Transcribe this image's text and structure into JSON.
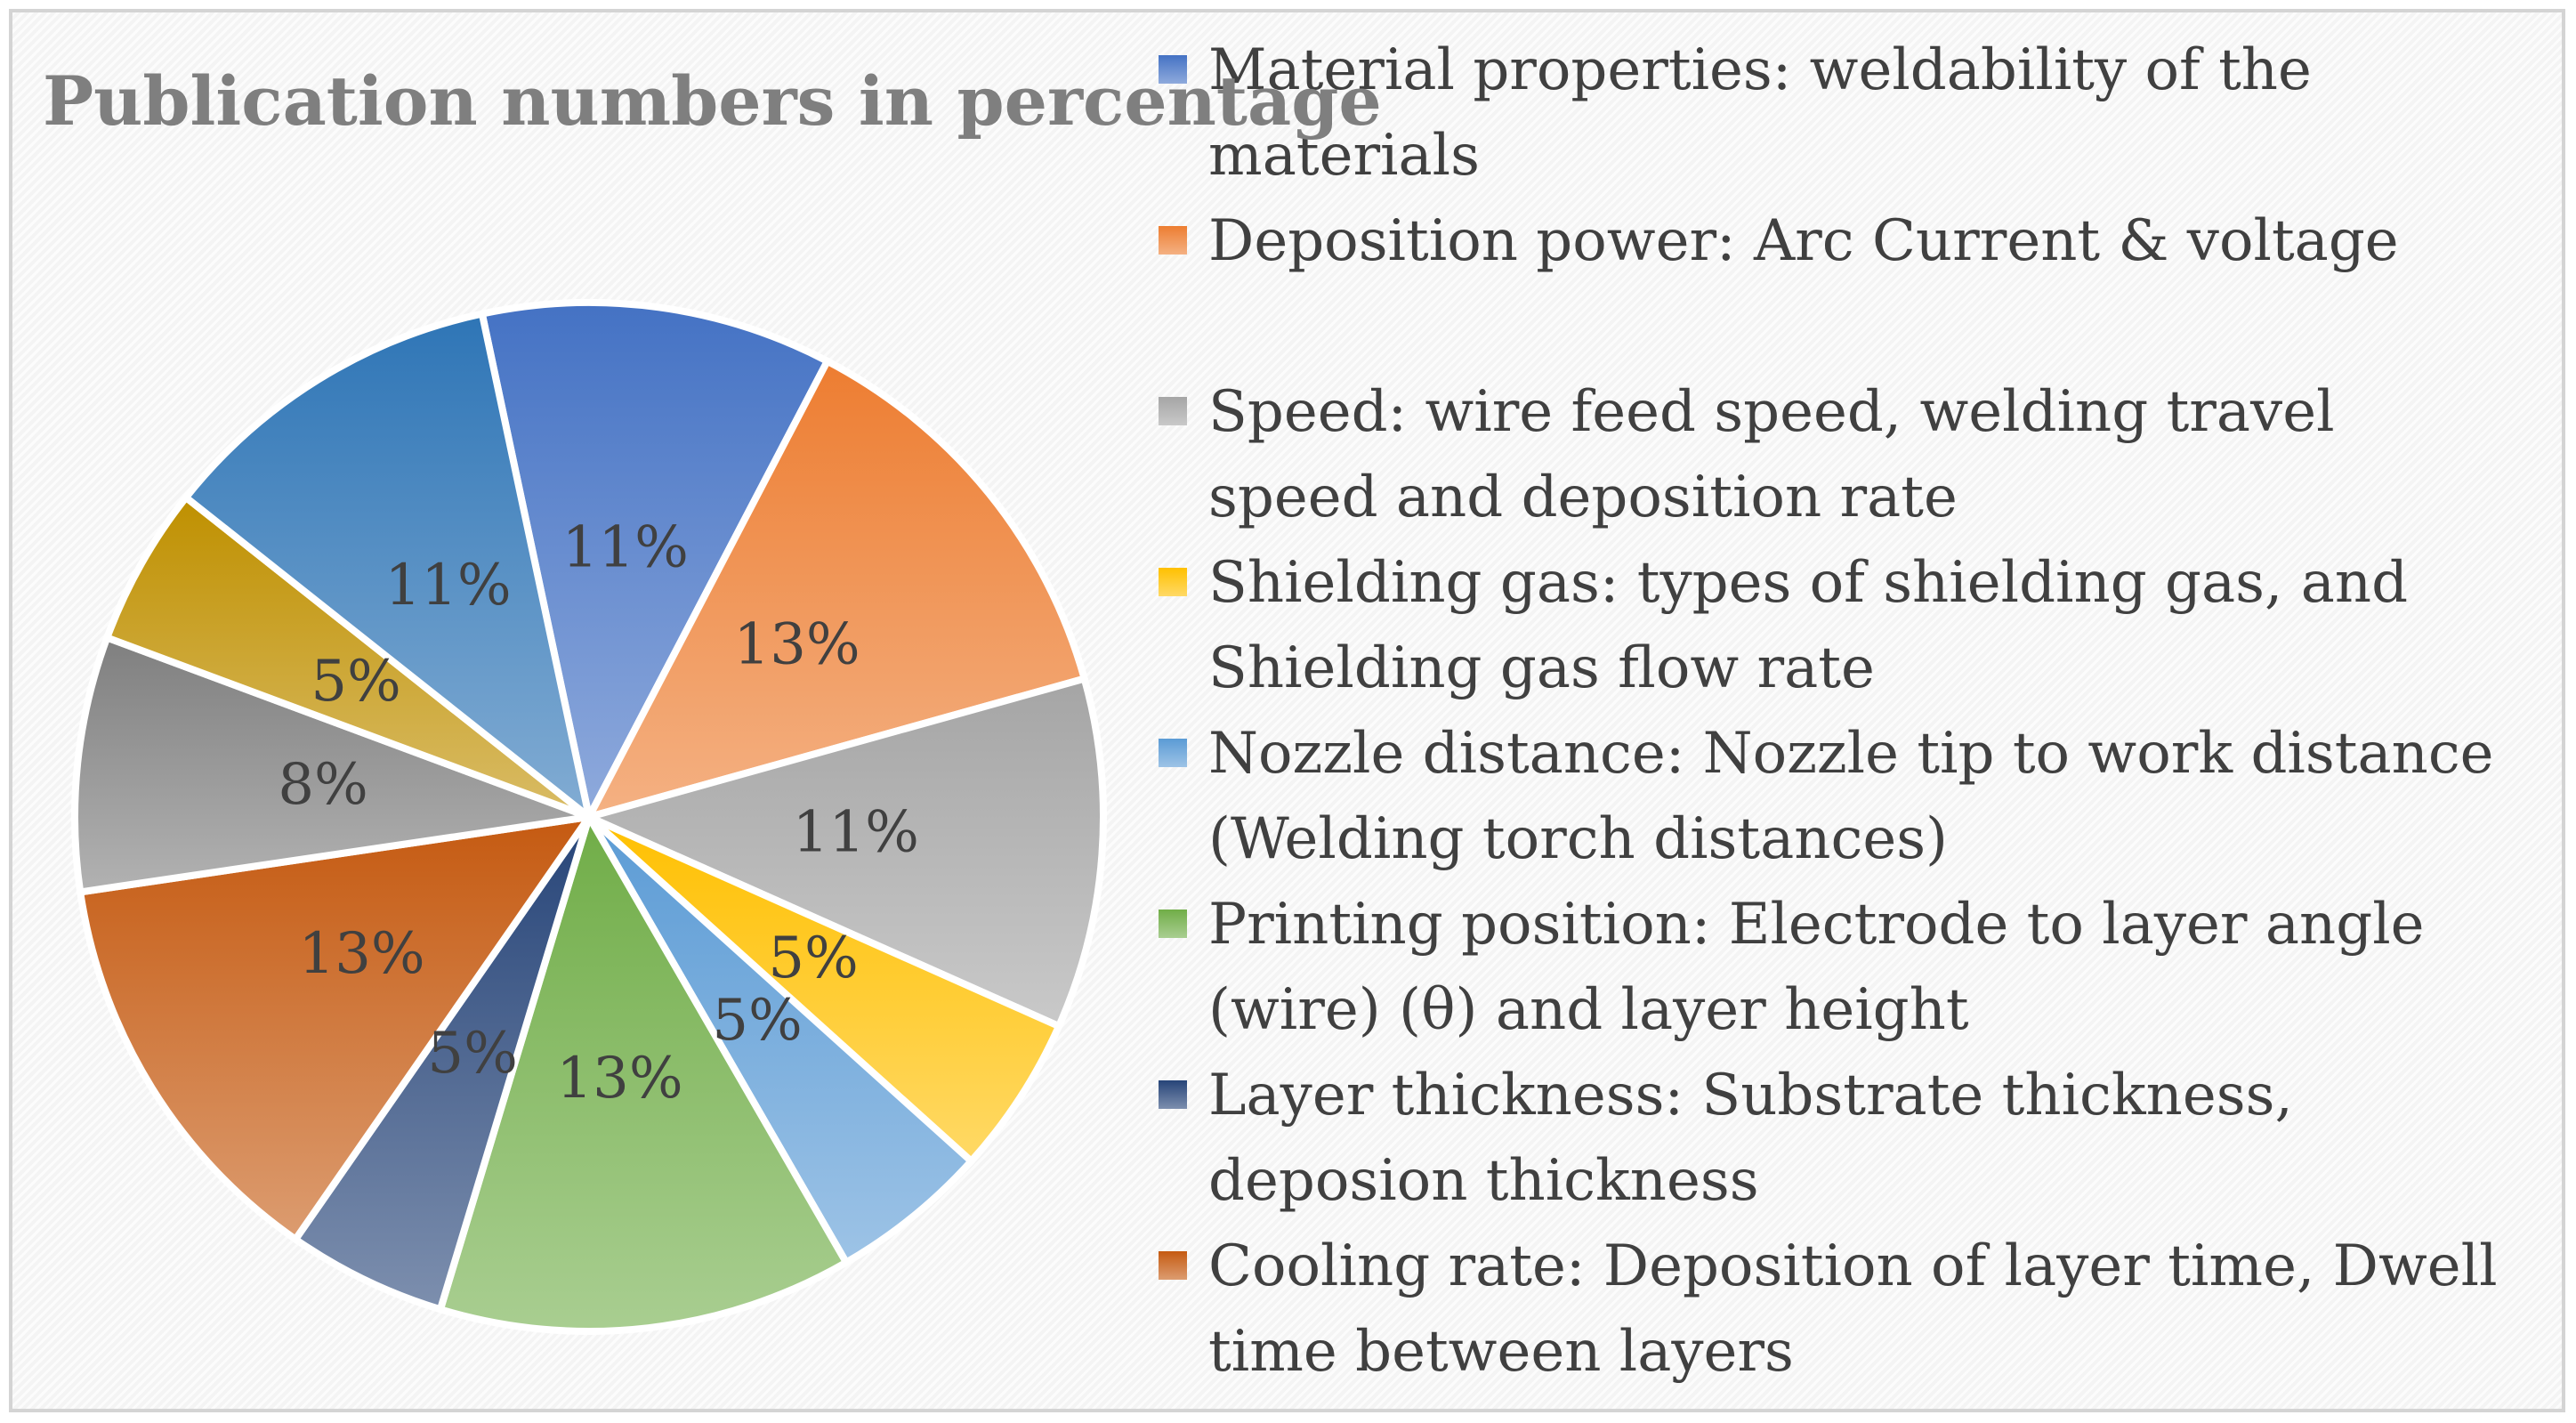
{
  "chart_data": {
    "type": "pie",
    "title": "Publication numbers in percentage",
    "legend_position": "right",
    "slices": [
      {
        "label": "Material properties: weldability of the materials",
        "value": 11,
        "value_label": "11%",
        "color": "#4472c4",
        "legend_lines": [
          "Material properties: weldability of the",
          "materials"
        ]
      },
      {
        "label": "Deposition power: Arc Current & voltage",
        "value": 13,
        "value_label": "13%",
        "color": "#ed7d31",
        "legend_lines": [
          "Deposition power: Arc Current & voltage"
        ]
      },
      {
        "label": "Speed: wire feed speed, welding travel speed and deposition rate",
        "value": 11,
        "value_label": "11%",
        "color": "#a5a5a5",
        "legend_lines": [
          "Speed: wire feed speed, welding travel",
          "speed and deposition rate"
        ]
      },
      {
        "label": "Shielding gas: types of shielding gas, and Shielding gas flow rate",
        "value": 5,
        "value_label": "5%",
        "color": "#ffc000",
        "legend_lines": [
          "Shielding gas: types of shielding gas, and",
          "Shielding gas flow rate"
        ]
      },
      {
        "label": "Nozzle distance: Nozzle tip to work distance (Welding torch distances)",
        "value": 5,
        "value_label": "5%",
        "color": "#5b9bd5",
        "legend_lines": [
          "Nozzle distance: Nozzle tip to work distance",
          "(Welding torch distances)"
        ]
      },
      {
        "label": "Printing position: Electrode to layer angle (wire) (θ) and layer height",
        "value": 13,
        "value_label": "13%",
        "color": "#70ad47",
        "legend_lines": [
          "Printing position: Electrode to layer angle",
          "(wire) (θ) and layer height"
        ]
      },
      {
        "label": "Layer thickness: Substrate thickness, deposion thickness",
        "value": 5,
        "value_label": "5%",
        "color": "#264478",
        "legend_lines": [
          "Layer thickness: Substrate thickness,",
          "deposion thickness"
        ]
      },
      {
        "label": "Cooling rate: Deposition of layer time, Dwell time between layers",
        "value": 13,
        "value_label": "13%",
        "color": "#c55a11",
        "legend_lines": [
          "Cooling rate: Deposition of layer time, Dwell",
          "time between layers"
        ]
      },
      {
        "label": "",
        "value": 8,
        "value_label": "8%",
        "color": "#7f7f7f",
        "legend_lines": []
      },
      {
        "label": "",
        "value": 5,
        "value_label": "5%",
        "color": "#bf9000",
        "legend_lines": []
      },
      {
        "label": "",
        "value": 11,
        "value_label": "11%",
        "color": "#2e75b6",
        "legend_lines": []
      }
    ]
  }
}
